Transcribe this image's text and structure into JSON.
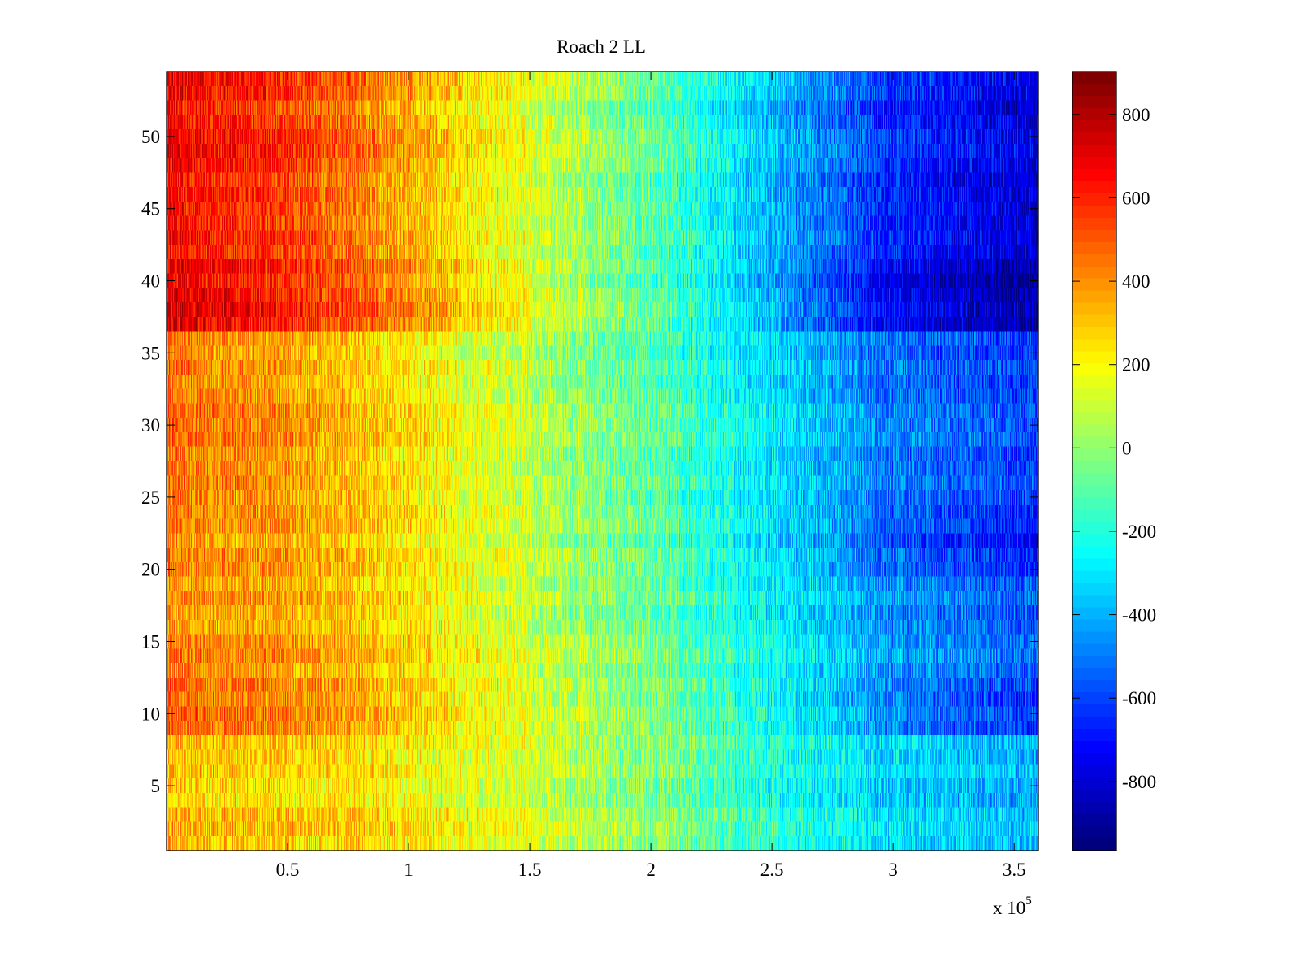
{
  "chart_data": {
    "type": "heatmap",
    "title": "Roach 2 LL",
    "xlabel": "",
    "ylabel": "",
    "x_exponent_label": "x 10",
    "x_exponent": "5",
    "xlim": [
      0,
      3.6
    ],
    "ylim": [
      0.5,
      54.5
    ],
    "rows": 54,
    "x_ticks": [
      "0.5",
      "1",
      "1.5",
      "2",
      "2.5",
      "3",
      "3.5"
    ],
    "x_tick_values": [
      0.5,
      1,
      1.5,
      2,
      2.5,
      3,
      3.5
    ],
    "y_ticks": [
      "5",
      "10",
      "15",
      "20",
      "25",
      "30",
      "35",
      "40",
      "45",
      "50"
    ],
    "y_tick_values": [
      5,
      10,
      15,
      20,
      25,
      30,
      35,
      40,
      45,
      50
    ],
    "colormap": "jet",
    "clim": [
      -966,
      903
    ],
    "colorbar_ticks": [
      "800",
      "600",
      "400",
      "200",
      "0",
      "-200",
      "-400",
      "-600",
      "-800"
    ],
    "colorbar_tick_values": [
      800,
      600,
      400,
      200,
      0,
      -200,
      -400,
      -600,
      -800
    ],
    "approx_mean_profile": {
      "x_knots": [
        0,
        0.5,
        1,
        1.5,
        2,
        2.5,
        3,
        3.6
      ],
      "row_bands": [
        {
          "rows": [
            1,
            8
          ],
          "values": [
            300,
            280,
            220,
            120,
            -20,
            -200,
            -330,
            -400
          ]
        },
        {
          "rows": [
            9,
            12
          ],
          "values": [
            450,
            400,
            280,
            120,
            -50,
            -250,
            -500,
            -650
          ]
        },
        {
          "rows": [
            13,
            19
          ],
          "values": [
            400,
            380,
            260,
            100,
            -60,
            -250,
            -450,
            -550
          ]
        },
        {
          "rows": [
            20,
            24
          ],
          "values": [
            420,
            380,
            250,
            100,
            -80,
            -300,
            -550,
            -680
          ]
        },
        {
          "rows": [
            25,
            36
          ],
          "values": [
            450,
            380,
            240,
            80,
            -100,
            -300,
            -500,
            -600
          ]
        },
        {
          "rows": [
            37,
            41
          ],
          "values": [
            700,
            600,
            400,
            150,
            -100,
            -400,
            -750,
            -900
          ]
        },
        {
          "rows": [
            42,
            54
          ],
          "values": [
            650,
            550,
            350,
            130,
            -100,
            -380,
            -650,
            -800
          ]
        }
      ],
      "noise_amplitude": 160
    }
  }
}
